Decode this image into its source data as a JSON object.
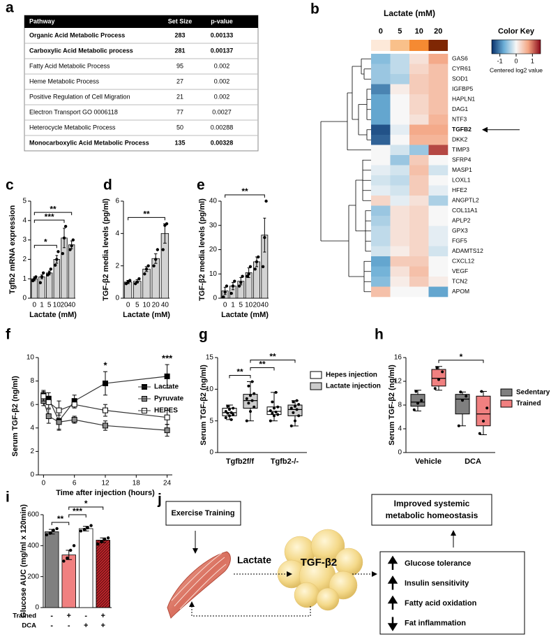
{
  "table": {
    "panel": "a",
    "columns": [
      "Pathway",
      "Set Size",
      "p-value"
    ],
    "rows": [
      {
        "cells": [
          "Organic Acid Metabolic Process",
          "283",
          "0.00133"
        ],
        "bold": true
      },
      {
        "cells": [
          "Carboxylic Acid Metabolic process",
          "281",
          "0.00137"
        ],
        "bold": true
      },
      {
        "cells": [
          "Fatty Acid Metabolic Process",
          "95",
          "0.002"
        ],
        "bold": false
      },
      {
        "cells": [
          "Heme Metabolic Process",
          "27",
          "0.002"
        ],
        "bold": false
      },
      {
        "cells": [
          "Positive Regulation of Cell Migration",
          "21",
          "0.002"
        ],
        "bold": false
      },
      {
        "cells": [
          "Electron Transport GO 0006118",
          "77",
          "0.0027"
        ],
        "bold": false
      },
      {
        "cells": [
          "Heterocycle Metabolic Process",
          "50",
          "0.00288"
        ],
        "bold": false
      },
      {
        "cells": [
          "Monocarboxylic Acid Metabolic Process",
          "135",
          "0.00328"
        ],
        "bold": true
      }
    ]
  },
  "chart_data": [
    {
      "type": "heatmap",
      "panel": "b",
      "title": "Lactate (mM)",
      "columns": [
        "0",
        "5",
        "10",
        "20"
      ],
      "column_colors": [
        "#fde9d9",
        "#f9c08a",
        "#f58a32",
        "#7f2704"
      ],
      "rows": [
        "GAS6",
        "CYR61",
        "SOD1",
        "IGFBP5",
        "HAPLN1",
        "DAG1",
        "NTF3",
        "TGFB2",
        "DKK2",
        "TIMP3",
        "SFRP4",
        "MASP1",
        "LOXL1",
        "HFE2",
        "ANGPTL2",
        "COL11A1",
        "APLP2",
        "GPX3",
        "FGF5",
        "ADAMTS12",
        "CXCL12",
        "VEGF",
        "TCN2",
        "APOM"
      ],
      "highlight": "TGFB2",
      "values": [
        [
          -0.6,
          -0.3,
          0.2,
          0.7
        ],
        [
          -0.5,
          -0.3,
          0.3,
          0.5
        ],
        [
          -0.5,
          -0.4,
          0.4,
          0.5
        ],
        [
          -1,
          0.1,
          0.4,
          0.5
        ],
        [
          -0.8,
          0,
          0.3,
          0.5
        ],
        [
          -0.8,
          0,
          0.3,
          0.5
        ],
        [
          -0.8,
          0,
          0.2,
          0.6
        ],
        [
          -1.3,
          -0.1,
          0.7,
          0.7
        ],
        [
          -1.2,
          0,
          0.6,
          0.6
        ],
        [
          0,
          -0.2,
          -0.5,
          1.2
        ],
        [
          0,
          -0.5,
          0.4,
          0
        ],
        [
          -0.1,
          -0.2,
          0.5,
          -0.2
        ],
        [
          -0.2,
          -0.3,
          0.4,
          0
        ],
        [
          -0.1,
          -0.2,
          0.4,
          -0.1
        ],
        [
          0.3,
          -0.1,
          0.2,
          -0.4
        ],
        [
          -0.5,
          0.2,
          0.3,
          0
        ],
        [
          -0.4,
          0.2,
          0.3,
          0
        ],
        [
          -0.3,
          0.2,
          0.3,
          -0.1
        ],
        [
          -0.3,
          0.2,
          0.3,
          -0.1
        ],
        [
          -0.2,
          0.1,
          0.3,
          -0.2
        ],
        [
          -0.8,
          0.4,
          0.4,
          0
        ],
        [
          -0.7,
          0.2,
          0.5,
          0
        ],
        [
          -0.6,
          0.1,
          0.4,
          0.1
        ],
        [
          0.5,
          0,
          0,
          -0.8
        ]
      ],
      "zlim": [
        -1.5,
        1.5
      ],
      "zticks": [
        -1,
        0,
        1
      ],
      "palette": [
        "#08306b",
        "#6baed6",
        "#f7f7f7",
        "#f4a582",
        "#8b0a1a"
      ],
      "key_title": "Color Key",
      "key_label": "Centered log2 value"
    },
    {
      "type": "bar",
      "panel": "c",
      "ylabel": "Tgfb2 mRNA expression",
      "xlabel": "Lactate (mM)",
      "categories": [
        "0",
        "1",
        "5",
        "10",
        "20",
        "40"
      ],
      "values": [
        1.0,
        1.1,
        1.3,
        2.0,
        3.1,
        2.75
      ],
      "errors": [
        0.1,
        0.1,
        0.1,
        0.2,
        0.5,
        0.2
      ],
      "points": [
        [
          0.9,
          1.0,
          1.1
        ],
        [
          0.8,
          1.1,
          1.3
        ],
        [
          1.2,
          1.3,
          1.5
        ],
        [
          1.7,
          2.0,
          2.4
        ],
        [
          2.3,
          3.1,
          3.7
        ],
        [
          2.5,
          2.7,
          3.0
        ]
      ],
      "color": "#d3d3d3",
      "ylim": [
        0,
        5
      ],
      "yticks": [
        0,
        1,
        2,
        3,
        4,
        5
      ],
      "brackets": [
        {
          "between": [
            0,
            3
          ],
          "label": "*"
        },
        {
          "between": [
            0,
            4
          ],
          "label": "***"
        },
        {
          "between": [
            0,
            5
          ],
          "label": "**"
        }
      ]
    },
    {
      "type": "bar",
      "panel": "d",
      "ylabel": "TGF-β2 media levels (pg/ml)",
      "xlabel": "Lactate (mM)",
      "categories": [
        "0",
        "5",
        "10",
        "20",
        "40"
      ],
      "values": [
        1.0,
        1.05,
        1.8,
        2.45,
        4.0
      ],
      "errors": [
        0.1,
        0.1,
        0.15,
        0.3,
        0.6
      ],
      "points": [
        [
          0.9,
          1.0,
          1.1
        ],
        [
          0.9,
          1.0,
          1.2
        ],
        [
          1.5,
          1.8,
          2.0
        ],
        [
          2.0,
          2.4,
          3.0
        ],
        [
          3.0,
          4.5,
          4.6
        ]
      ],
      "color": "#d3d3d3",
      "ylim": [
        0,
        6
      ],
      "yticks": [
        0,
        2,
        4,
        6
      ],
      "brackets": [
        {
          "between": [
            0,
            4
          ],
          "label": "**"
        }
      ]
    },
    {
      "type": "bar",
      "panel": "e",
      "ylabel": "TGF-β2 media levels (pg/ml)",
      "xlabel": "Lactate (mM)",
      "categories": [
        "0",
        "1",
        "5",
        "10",
        "20",
        "40"
      ],
      "values": [
        3,
        5,
        7,
        10.5,
        15,
        26
      ],
      "errors": [
        1.5,
        1.5,
        1.5,
        2,
        2,
        7
      ],
      "points": [
        [
          0.5,
          2.5,
          5
        ],
        [
          2,
          5,
          7
        ],
        [
          5,
          6.5,
          9
        ],
        [
          9,
          10,
          13
        ],
        [
          12,
          15,
          17
        ],
        [
          13,
          25,
          40
        ]
      ],
      "color": "#d3d3d3",
      "ylim": [
        0,
        40
      ],
      "yticks": [
        0,
        10,
        20,
        30,
        40
      ],
      "brackets": [
        {
          "between": [
            0,
            5
          ],
          "label": "**"
        }
      ]
    },
    {
      "type": "line",
      "panel": "f",
      "ylabel": "Serum TGF-β2 (ng/ml)",
      "xlabel": "Time after injection (hours)",
      "x": [
        0,
        1,
        3,
        6,
        12,
        24
      ],
      "xlim": [
        -1,
        25
      ],
      "xticks": [
        0,
        6,
        12,
        18,
        24
      ],
      "ylim": [
        0,
        10
      ],
      "yticks": [
        0,
        2,
        4,
        6,
        8,
        10
      ],
      "line_color": "#333333",
      "legend": "right",
      "series": [
        {
          "name": "Lactate",
          "color": "#000000",
          "values": [
            6.8,
            6.5,
            4.6,
            6.3,
            7.8,
            8.4
          ],
          "errors": [
            0.4,
            0.5,
            0.8,
            0.5,
            1.0,
            1.0
          ]
        },
        {
          "name": "Pyruvate",
          "color": "#8c8c8c",
          "values": [
            6.3,
            5.0,
            4.5,
            4.7,
            4.2,
            3.8
          ],
          "errors": [
            0.4,
            0.6,
            0.6,
            0.3,
            0.4,
            0.5
          ]
        },
        {
          "name": "HEPES",
          "color": "#ffffff",
          "values": [
            6.7,
            6.2,
            5.5,
            6.0,
            5.5,
            4.9
          ],
          "errors": [
            0.4,
            0.5,
            0.8,
            0.3,
            0.5,
            0.6
          ]
        }
      ],
      "annotations": [
        {
          "x": 12,
          "label": "*"
        },
        {
          "x": 24,
          "label": "***"
        }
      ]
    },
    {
      "type": "box",
      "panel": "g",
      "ylabel": "Serum TGF-β2 (ng/ml)",
      "groups": [
        "Tgfb2f/f",
        "Tgfb2-/-"
      ],
      "ylim": [
        0,
        15
      ],
      "yticks": [
        0,
        5,
        10,
        15
      ],
      "legend": "right",
      "series": [
        {
          "name": "Hepes injection",
          "color": "#ffffff",
          "boxes": [
            [
              5.2,
              5.8,
              6.3,
              7.0,
              7.5
            ],
            [
              5.0,
              6.0,
              6.5,
              7.2,
              9.5
            ]
          ],
          "points": [
            [
              5.5,
              5.8,
              6.0,
              6.2,
              6.3,
              6.5,
              6.8,
              7.0,
              7.3,
              5.2
            ],
            [
              5.0,
              5.8,
              6.0,
              6.2,
              6.4,
              6.6,
              7.0,
              7.2,
              8.0,
              9.5
            ]
          ]
        },
        {
          "name": "Lactate injection",
          "color": "#cccccc",
          "boxes": [
            [
              5.0,
              7.0,
              8.2,
              9.2,
              11.2
            ],
            [
              4.2,
              5.8,
              6.8,
              7.5,
              8.2
            ]
          ],
          "points": [
            [
              5.0,
              6.5,
              7.2,
              7.8,
              8.2,
              8.5,
              9.0,
              9.3,
              10.5,
              11.2
            ],
            [
              4.2,
              5.0,
              5.8,
              6.3,
              6.8,
              7.0,
              7.3,
              7.6,
              8.0,
              8.2
            ]
          ]
        }
      ],
      "brackets": [
        {
          "between": [
            0,
            1
          ],
          "label": "**"
        },
        {
          "between": [
            1,
            2
          ],
          "label": "**"
        },
        {
          "between": [
            1,
            3
          ],
          "label": "**"
        }
      ]
    },
    {
      "type": "box",
      "panel": "h",
      "ylabel": "Serum TGF-β2 (ng/ml)",
      "groups": [
        "Vehicle",
        "DCA"
      ],
      "ylim": [
        0,
        16
      ],
      "yticks": [
        0,
        4,
        8,
        12,
        16
      ],
      "legend": "right",
      "series": [
        {
          "name": "Sedentary",
          "color": "#7f7f7f",
          "boxes": [
            [
              7.0,
              7.8,
              8.5,
              9.8,
              10.5
            ],
            [
              4.5,
              6.5,
              9.0,
              9.8,
              10.2
            ]
          ],
          "points": [
            [
              7.2,
              8.3,
              8.8,
              10.3
            ],
            [
              4.5,
              8.8,
              9.5,
              10.2
            ]
          ]
        },
        {
          "name": "Trained",
          "color": "#f08080",
          "boxes": [
            [
              10.5,
              11.2,
              12.5,
              14.0,
              14.5
            ],
            [
              3.0,
              4.5,
              6.5,
              9.5,
              10.3
            ]
          ],
          "points": [
            [
              10.8,
              12.3,
              13.6,
              14.3
            ],
            [
              3.2,
              5.3,
              7.5,
              10.3
            ]
          ]
        }
      ],
      "brackets": [
        {
          "between": [
            1,
            3
          ],
          "label": "*"
        }
      ]
    },
    {
      "type": "bar",
      "panel": "i",
      "ylabel": "Glucose AUC (mg/ml x 120min)",
      "values": [
        490,
        340,
        510,
        435
      ],
      "errors": [
        15,
        30,
        15,
        15
      ],
      "points": [
        [
          470,
          480,
          500,
          510
        ],
        [
          300,
          320,
          370,
          400
        ],
        [
          495,
          505,
          515,
          530
        ],
        [
          410,
          425,
          440,
          450
        ]
      ],
      "colors": [
        "#808080",
        "#f08080",
        "#ffffff",
        "#c0282d"
      ],
      "hatch": [
        false,
        false,
        false,
        true
      ],
      "ylim": [
        0,
        600
      ],
      "yticks": [
        0,
        200,
        400,
        600
      ],
      "conditions": [
        {
          "name": "Trained",
          "marks": [
            "-",
            "+",
            "-",
            "+"
          ]
        },
        {
          "name": "DCA",
          "marks": [
            "-",
            "-",
            "+",
            "+"
          ]
        }
      ],
      "brackets": [
        {
          "between": [
            0,
            1
          ],
          "label": "**"
        },
        {
          "between": [
            1,
            2
          ],
          "label": "***"
        },
        {
          "between": [
            1,
            3
          ],
          "label": "*"
        }
      ]
    }
  ],
  "diagram": {
    "panel": "j",
    "start": "Exercise Training",
    "mediator": "Lactate",
    "factor": "TGF-β2",
    "outcome": [
      "Improved systemic",
      "metabolic homeostasis"
    ],
    "effects": [
      {
        "text": "Glucose tolerance",
        "direction": "up"
      },
      {
        "text": "Insulin sensitivity",
        "direction": "up"
      },
      {
        "text": "Fatty acid oxidation",
        "direction": "up"
      },
      {
        "text": "Fat inflammation",
        "direction": "down"
      }
    ]
  }
}
